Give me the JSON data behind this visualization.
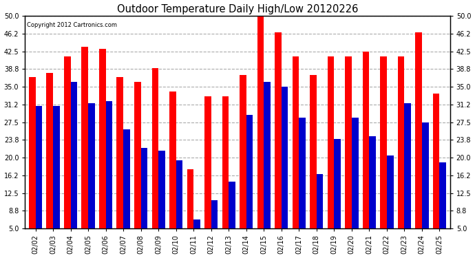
{
  "title": "Outdoor Temperature Daily High/Low 20120226",
  "copyright": "Copyright 2012 Cartronics.com",
  "dates": [
    "02/02",
    "02/03",
    "02/04",
    "02/05",
    "02/06",
    "02/07",
    "02/08",
    "02/09",
    "02/10",
    "02/11",
    "02/12",
    "02/13",
    "02/14",
    "02/15",
    "02/16",
    "02/17",
    "02/18",
    "02/19",
    "02/20",
    "02/21",
    "02/22",
    "02/23",
    "02/24",
    "02/25"
  ],
  "highs": [
    37.0,
    38.0,
    41.5,
    43.5,
    43.0,
    37.0,
    36.0,
    39.0,
    34.0,
    17.5,
    33.0,
    33.0,
    37.5,
    50.0,
    46.5,
    41.5,
    37.5,
    41.5,
    41.5,
    42.5,
    41.5,
    41.5,
    46.5,
    33.5
  ],
  "lows": [
    31.0,
    31.0,
    36.0,
    31.5,
    32.0,
    26.0,
    22.0,
    21.5,
    19.5,
    7.0,
    11.0,
    15.0,
    29.0,
    36.0,
    35.0,
    28.5,
    16.5,
    24.0,
    28.5,
    24.5,
    20.5,
    31.5,
    27.5,
    19.0
  ],
  "bar_width": 0.38,
  "high_color": "#ff0000",
  "low_color": "#0000cc",
  "bg_color": "#ffffff",
  "grid_color": "#aaaaaa",
  "ymin": 5.0,
  "ymax": 50.0,
  "yticks": [
    5.0,
    8.8,
    12.5,
    16.2,
    20.0,
    23.8,
    27.5,
    31.2,
    35.0,
    38.8,
    42.5,
    46.2,
    50.0
  ]
}
